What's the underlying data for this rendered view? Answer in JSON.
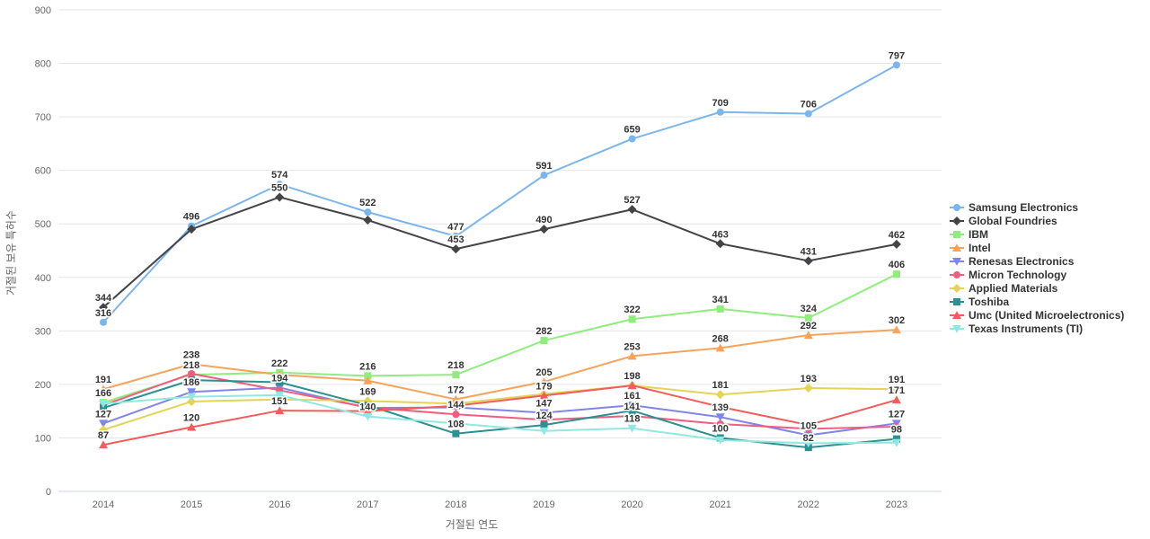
{
  "chart_data": {
    "type": "line",
    "title": "",
    "xlabel": "거절된 연도",
    "ylabel": "거절된 보유 특허수",
    "ylim": [
      0,
      900
    ],
    "y_ticks": [
      0,
      100,
      200,
      300,
      400,
      500,
      600,
      700,
      800,
      900
    ],
    "grid": "horizontal",
    "legend_position": "right",
    "categories": [
      "2014",
      "2015",
      "2016",
      "2017",
      "2018",
      "2019",
      "2020",
      "2021",
      "2022",
      "2023"
    ],
    "series": [
      {
        "name": "Samsung Electronics",
        "color": "#7cb5ec",
        "marker": "circle",
        "values": [
          316,
          496,
          574,
          522,
          477,
          591,
          659,
          709,
          706,
          797
        ],
        "label_visible": [
          true,
          true,
          true,
          true,
          true,
          true,
          true,
          true,
          true,
          true
        ]
      },
      {
        "name": "Global Foundries",
        "color": "#434348",
        "marker": "diamond",
        "values": [
          344,
          490,
          550,
          507,
          453,
          490,
          527,
          463,
          431,
          462
        ],
        "label_visible": [
          true,
          false,
          true,
          false,
          true,
          true,
          true,
          true,
          true,
          true
        ]
      },
      {
        "name": "IBM",
        "color": "#90ed7d",
        "marker": "square",
        "values": [
          166,
          218,
          222,
          216,
          218,
          282,
          322,
          341,
          324,
          406
        ],
        "label_visible": [
          true,
          true,
          true,
          true,
          true,
          true,
          true,
          true,
          true,
          true
        ]
      },
      {
        "name": "Intel",
        "color": "#f7a35c",
        "marker": "triangle",
        "values": [
          191,
          238,
          218,
          207,
          172,
          205,
          253,
          268,
          292,
          302
        ],
        "label_visible": [
          true,
          true,
          false,
          false,
          true,
          true,
          true,
          true,
          true,
          true
        ]
      },
      {
        "name": "Renesas Electronics",
        "color": "#8085e9",
        "marker": "triangle-down",
        "values": [
          127,
          186,
          194,
          156,
          157,
          147,
          161,
          139,
          105,
          127
        ],
        "label_visible": [
          true,
          true,
          true,
          false,
          false,
          true,
          true,
          true,
          true,
          true
        ]
      },
      {
        "name": "Micron Technology",
        "color": "#f15c80",
        "marker": "circle",
        "values": [
          161,
          220,
          189,
          157,
          144,
          134,
          141,
          126,
          117,
          121
        ],
        "label_visible": [
          false,
          false,
          false,
          false,
          true,
          false,
          true,
          false,
          false,
          false
        ]
      },
      {
        "name": "Applied Materials",
        "color": "#e4d354",
        "marker": "diamond",
        "values": [
          115,
          168,
          172,
          169,
          164,
          182,
          198,
          181,
          193,
          191
        ],
        "label_visible": [
          false,
          false,
          false,
          true,
          false,
          false,
          false,
          true,
          true,
          true
        ]
      },
      {
        "name": "Toshiba",
        "color": "#2b908f",
        "marker": "square",
        "values": [
          156,
          208,
          204,
          161,
          108,
          124,
          151,
          100,
          82,
          98
        ],
        "label_visible": [
          false,
          false,
          false,
          false,
          true,
          true,
          false,
          true,
          true,
          true
        ]
      },
      {
        "name": "Umc (United Microelectronics)",
        "color": "#f45b5b",
        "marker": "triangle",
        "values": [
          87,
          120,
          151,
          150,
          160,
          179,
          198,
          158,
          124,
          171
        ],
        "label_visible": [
          true,
          true,
          true,
          false,
          false,
          true,
          true,
          false,
          false,
          true
        ]
      },
      {
        "name": "Texas Instruments (TI)",
        "color": "#91e8e1",
        "marker": "triangle-down",
        "values": [
          164,
          177,
          180,
          140,
          127,
          113,
          118,
          96,
          90,
          91
        ],
        "label_visible": [
          false,
          false,
          false,
          true,
          false,
          false,
          true,
          false,
          false,
          false
        ]
      }
    ],
    "style": {
      "grid_color": "#e6e6e6",
      "axis_line_color": "#ccd6eb",
      "tick_label_color": "#666666",
      "axis_title_color": "#666666",
      "data_label_color": "#333333",
      "legend_text_color": "#333333",
      "background": "#ffffff"
    }
  }
}
